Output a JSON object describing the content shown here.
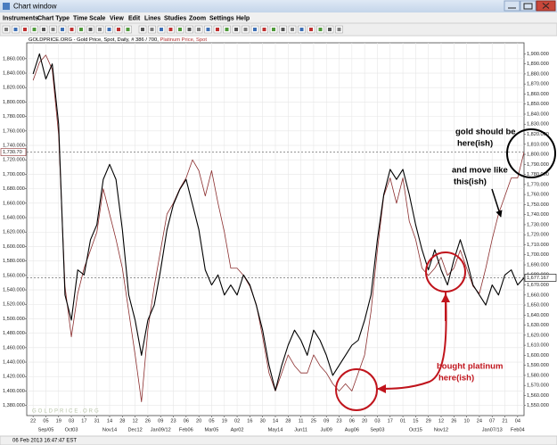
{
  "window": {
    "title": "Chart window",
    "menu": [
      "Instruments",
      "Chart Type",
      "Time Scale",
      "View",
      "Edit",
      "Lines",
      "Studies",
      "Zoom",
      "Settings",
      "Help"
    ],
    "status": "06 Feb 2013 16:47:47 EST"
  },
  "chart_data": {
    "type": "line",
    "watermark": "GOLDPRICE.ORG",
    "x": [
      0,
      1,
      2,
      3,
      4,
      5,
      6,
      7,
      8,
      9,
      10,
      11,
      12,
      13,
      14,
      15,
      16,
      17,
      18,
      19,
      20,
      21,
      22,
      23,
      24,
      25,
      26,
      27,
      28,
      29,
      30,
      31,
      32,
      33,
      34,
      35,
      36,
      37,
      38,
      39,
      40,
      41,
      42,
      43,
      44,
      45,
      46,
      47,
      48,
      49,
      50,
      51,
      52,
      53,
      54,
      55,
      56,
      57,
      58,
      59,
      60,
      61,
      62,
      63,
      64,
      65,
      66,
      67,
      68,
      69,
      70,
      71,
      72,
      73,
      74,
      75,
      76,
      77
    ],
    "xlim": [
      -1,
      77
    ],
    "xticks": [
      {
        "value": 0,
        "label": "22"
      },
      {
        "value": 2,
        "label": "05"
      },
      {
        "value": 4,
        "label": "19"
      },
      {
        "value": 6,
        "label": "03"
      },
      {
        "value": 8,
        "label": "17"
      },
      {
        "value": 10,
        "label": "31"
      },
      {
        "value": 12,
        "label": "14"
      },
      {
        "value": 14,
        "label": "28"
      },
      {
        "value": 16,
        "label": "12"
      },
      {
        "value": 18,
        "label": "26"
      },
      {
        "value": 20,
        "label": "09"
      },
      {
        "value": 22,
        "label": "23"
      },
      {
        "value": 24,
        "label": "06"
      },
      {
        "value": 26,
        "label": "20"
      },
      {
        "value": 28,
        "label": "05"
      },
      {
        "value": 30,
        "label": "19"
      },
      {
        "value": 32,
        "label": "02"
      },
      {
        "value": 34,
        "label": "16"
      },
      {
        "value": 36,
        "label": "30"
      },
      {
        "value": 38,
        "label": "14"
      },
      {
        "value": 40,
        "label": "28"
      },
      {
        "value": 42,
        "label": "11"
      },
      {
        "value": 44,
        "label": "25"
      },
      {
        "value": 46,
        "label": "09"
      },
      {
        "value": 48,
        "label": "23"
      },
      {
        "value": 50,
        "label": "06"
      },
      {
        "value": 52,
        "label": "20"
      },
      {
        "value": 54,
        "label": "03"
      },
      {
        "value": 56,
        "label": "17"
      },
      {
        "value": 58,
        "label": "01"
      },
      {
        "value": 60,
        "label": "15"
      },
      {
        "value": 62,
        "label": "29"
      },
      {
        "value": 64,
        "label": "12"
      },
      {
        "value": 66,
        "label": "26"
      },
      {
        "value": 68,
        "label": "10"
      },
      {
        "value": 70,
        "label": "24"
      },
      {
        "value": 72,
        "label": "07"
      },
      {
        "value": 74,
        "label": "21"
      },
      {
        "value": 76,
        "label": "04"
      }
    ],
    "xticks_months": [
      {
        "value": 2,
        "label": "Sep/05"
      },
      {
        "value": 6,
        "label": "Oct03"
      },
      {
        "value": 12,
        "label": "Nov14"
      },
      {
        "value": 16,
        "label": "Dec12"
      },
      {
        "value": 20,
        "label": "Jan09/12"
      },
      {
        "value": 24,
        "label": "Feb06"
      },
      {
        "value": 28,
        "label": "Mar05"
      },
      {
        "value": 32,
        "label": "Apr02"
      },
      {
        "value": 38,
        "label": "May14"
      },
      {
        "value": 42,
        "label": "Jun11"
      },
      {
        "value": 46,
        "label": "Jul09"
      },
      {
        "value": 50,
        "label": "Aug06"
      },
      {
        "value": 54,
        "label": "Sep03"
      },
      {
        "value": 60,
        "label": "Oct15"
      },
      {
        "value": 64,
        "label": "Nov12"
      },
      {
        "value": 72,
        "label": "Jan07/13"
      },
      {
        "value": 76,
        "label": "Feb04"
      }
    ],
    "ylim": [
      1366,
      1882
    ],
    "yticks": [
      {
        "value": 1380,
        "label": "1,380.000"
      },
      {
        "value": 1400,
        "label": "1,400.000"
      },
      {
        "value": 1420,
        "label": "1,420.000"
      },
      {
        "value": 1440,
        "label": "1,440.000"
      },
      {
        "value": 1460,
        "label": "1,460.000"
      },
      {
        "value": 1480,
        "label": "1,480.000"
      },
      {
        "value": 1500,
        "label": "1,500.000"
      },
      {
        "value": 1520,
        "label": "1,520.000"
      },
      {
        "value": 1540,
        "label": "1,540.000"
      },
      {
        "value": 1560,
        "label": "1,560.000"
      },
      {
        "value": 1580,
        "label": "1,580.000"
      },
      {
        "value": 1600,
        "label": "1,600.000"
      },
      {
        "value": 1620,
        "label": "1,620.000"
      },
      {
        "value": 1640,
        "label": "1,640.000"
      },
      {
        "value": 1660,
        "label": "1,660.000"
      },
      {
        "value": 1680,
        "label": "1,680.000"
      },
      {
        "value": 1700,
        "label": "1,700.000"
      },
      {
        "value": 1720,
        "label": "1,720.000"
      },
      {
        "value": 1740,
        "label": "1,740.000"
      },
      {
        "value": 1760,
        "label": "1,760.000"
      },
      {
        "value": 1780,
        "label": "1,780.000"
      },
      {
        "value": 1800,
        "label": "1,800.000"
      },
      {
        "value": 1820,
        "label": "1,820.000"
      },
      {
        "value": 1840,
        "label": "1,840.000"
      },
      {
        "value": 1860,
        "label": "1,860.000"
      }
    ],
    "y2lim": [
      1540,
      1911
    ],
    "y2ticks": [
      {
        "value": 1550,
        "label": "1,550.000"
      },
      {
        "value": 1560,
        "label": "1,560.000"
      },
      {
        "value": 1570,
        "label": "1,570.000"
      },
      {
        "value": 1580,
        "label": "1,580.000"
      },
      {
        "value": 1590,
        "label": "1,590.000"
      },
      {
        "value": 1600,
        "label": "1,600.000"
      },
      {
        "value": 1610,
        "label": "1,610.000"
      },
      {
        "value": 1620,
        "label": "1,620.000"
      },
      {
        "value": 1630,
        "label": "1,630.000"
      },
      {
        "value": 1640,
        "label": "1,640.000"
      },
      {
        "value": 1650,
        "label": "1,650.000"
      },
      {
        "value": 1660,
        "label": "1,660.000"
      },
      {
        "value": 1670,
        "label": "1,670.000"
      },
      {
        "value": 1680,
        "label": "1,680.000"
      },
      {
        "value": 1690,
        "label": "1,690.000"
      },
      {
        "value": 1700,
        "label": "1,700.000"
      },
      {
        "value": 1710,
        "label": "1,710.000"
      },
      {
        "value": 1720,
        "label": "1,720.000"
      },
      {
        "value": 1730,
        "label": "1,730.000"
      },
      {
        "value": 1740,
        "label": "1,740.000"
      },
      {
        "value": 1750,
        "label": "1,750.000"
      },
      {
        "value": 1760,
        "label": "1,760.000"
      },
      {
        "value": 1770,
        "label": "1,770.000"
      },
      {
        "value": 1780,
        "label": "1,780.000"
      },
      {
        "value": 1790,
        "label": "1,790.000"
      },
      {
        "value": 1800,
        "label": "1,800.000"
      },
      {
        "value": 1810,
        "label": "1,810.000"
      },
      {
        "value": 1820,
        "label": "1,820.000"
      },
      {
        "value": 1830,
        "label": "1,830.000"
      },
      {
        "value": 1840,
        "label": "1,840.000"
      },
      {
        "value": 1850,
        "label": "1,850.000"
      },
      {
        "value": 1860,
        "label": "1,860.000"
      },
      {
        "value": 1870,
        "label": "1,870.000"
      },
      {
        "value": 1880,
        "label": "1,880.000"
      },
      {
        "value": 1890,
        "label": "1,890.000"
      },
      {
        "value": 1900,
        "label": "1,900.000"
      }
    ],
    "grid": true,
    "series": [
      {
        "name": "GOLDPRICE.ORG - Gold Price, Spot, Daily, # 386 / 700,",
        "color": "#000000",
        "axis": "y2",
        "last": {
          "value": 1677.167,
          "label": "1,677.167"
        },
        "values": [
          1880,
          1900,
          1875,
          1890,
          1830,
          1660,
          1635,
          1685,
          1680,
          1715,
          1730,
          1775,
          1790,
          1775,
          1725,
          1660,
          1635,
          1600,
          1635,
          1650,
          1685,
          1725,
          1750,
          1765,
          1775,
          1750,
          1725,
          1685,
          1670,
          1680,
          1660,
          1670,
          1660,
          1680,
          1670,
          1650,
          1625,
          1590,
          1565,
          1590,
          1610,
          1625,
          1615,
          1600,
          1625,
          1615,
          1600,
          1580,
          1590,
          1600,
          1610,
          1615,
          1635,
          1660,
          1715,
          1760,
          1785,
          1775,
          1785,
          1760,
          1730,
          1705,
          1685,
          1705,
          1685,
          1670,
          1695,
          1715,
          1695,
          1670,
          1660,
          1650,
          1670,
          1660,
          1680,
          1685,
          1670,
          1677.167
        ]
      },
      {
        "name": "Platinum Price, Spot",
        "color": "#8b2e2e",
        "last": {
          "value": 1730.7,
          "label": "1,730.70"
        },
        "values": [
          1830,
          1855,
          1865,
          1845,
          1755,
          1545,
          1475,
          1535,
          1570,
          1595,
          1620,
          1680,
          1645,
          1610,
          1570,
          1510,
          1450,
          1385,
          1485,
          1545,
          1595,
          1645,
          1660,
          1680,
          1695,
          1720,
          1705,
          1670,
          1705,
          1660,
          1620,
          1570,
          1570,
          1560,
          1545,
          1520,
          1475,
          1425,
          1400,
          1425,
          1450,
          1435,
          1425,
          1425,
          1450,
          1435,
          1425,
          1410,
          1400,
          1410,
          1400,
          1425,
          1450,
          1510,
          1595,
          1670,
          1695,
          1660,
          1695,
          1635,
          1610,
          1570,
          1560,
          1570,
          1585,
          1560,
          1570,
          1595,
          1570,
          1545,
          1535,
          1570,
          1610,
          1645,
          1670,
          1695,
          1695,
          1730.7
        ]
      }
    ],
    "annotations": [
      {
        "lines": [
          "gold should be",
          "here(ish)"
        ],
        "color": "#000000"
      },
      {
        "lines": [
          "and move like",
          "this(ish)"
        ],
        "color": "#000000"
      },
      {
        "lines": [
          "bought platinum",
          "here(ish)"
        ],
        "color": "#c0141c"
      }
    ]
  }
}
